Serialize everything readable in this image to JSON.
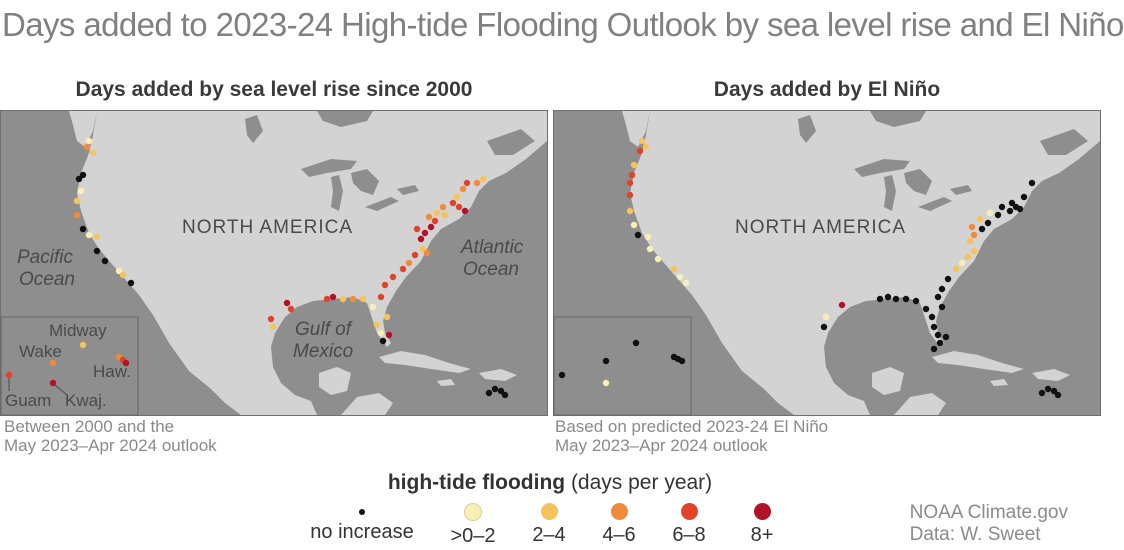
{
  "title": "Days added to 2023-24 High-tide Flooding Outlook by sea level rise and El Niño",
  "panels": {
    "left": {
      "title": "Days added by sea level rise since 2000",
      "caption_line1": "Between 2000 and the",
      "caption_line2": "May 2023–Apr 2024 outlook"
    },
    "right": {
      "title": "Days added by El Niño",
      "caption_line1": "Based on predicted 2023-24 El Niño",
      "caption_line2": "May 2023–Apr 2024 outlook"
    }
  },
  "map_labels": {
    "continent": "NORTH AMERICA",
    "pacific_1": "Pacific",
    "pacific_2": "Ocean",
    "atlantic_1": "Atlantic",
    "atlantic_2": "Ocean",
    "gulf_1": "Gulf of",
    "gulf_2": "Mexico",
    "midway": "Midway",
    "wake": "Wake",
    "hawaii": "Haw.",
    "guam": "Guam",
    "kwaj": "Kwaj."
  },
  "legend": {
    "title_bold": "high-tide flooding",
    "title_rest": " (days per year)",
    "items": [
      {
        "label": "no increase",
        "color": "#111111"
      },
      {
        "label": ">0–2",
        "color": "#f7f0b6"
      },
      {
        "label": "2–4",
        "color": "#f6c25a"
      },
      {
        "label": "4–6",
        "color": "#f08a3c"
      },
      {
        "label": "6–8",
        "color": "#e1432a"
      },
      {
        "label": "8+",
        "color": "#b01228"
      }
    ]
  },
  "credit": {
    "line1": "NOAA Climate.gov",
    "line2": "Data: W. Sweet"
  },
  "colors": {
    "ocean": "#8e8e8e",
    "land": "#d3d3d3",
    "no_increase": "#111111",
    "c0_2": "#f7f0b6",
    "c2_4": "#f6c25a",
    "c4_6": "#f08a3c",
    "c6_8": "#e1432a",
    "c8plus": "#b01228"
  }
}
